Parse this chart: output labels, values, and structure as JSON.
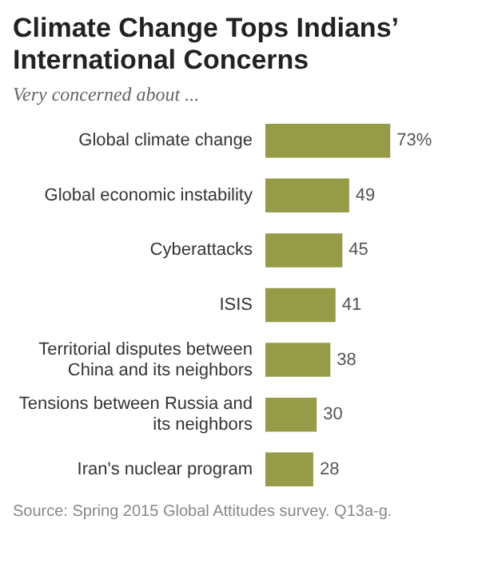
{
  "chart_data": {
    "type": "bar",
    "orientation": "horizontal",
    "title": "Climate Change Tops Indians’ International Concerns",
    "subtitle": "Very concerned about ...",
    "categories": [
      "Global climate change",
      "Global economic instability",
      "Cyberattacks",
      "ISIS",
      "Territorial disputes between China and its neighbors",
      "Tensions between Russia and its neighbors",
      "Iran's nuclear program"
    ],
    "values": [
      73,
      49,
      45,
      41,
      38,
      30,
      28
    ],
    "value_labels": [
      "73%",
      "49",
      "45",
      "41",
      "38",
      "30",
      "28"
    ],
    "color": "#959b46",
    "legend": false,
    "annotations": [
      "Source: Spring 2015 Global Attitudes survey. Q13a-g."
    ]
  }
}
